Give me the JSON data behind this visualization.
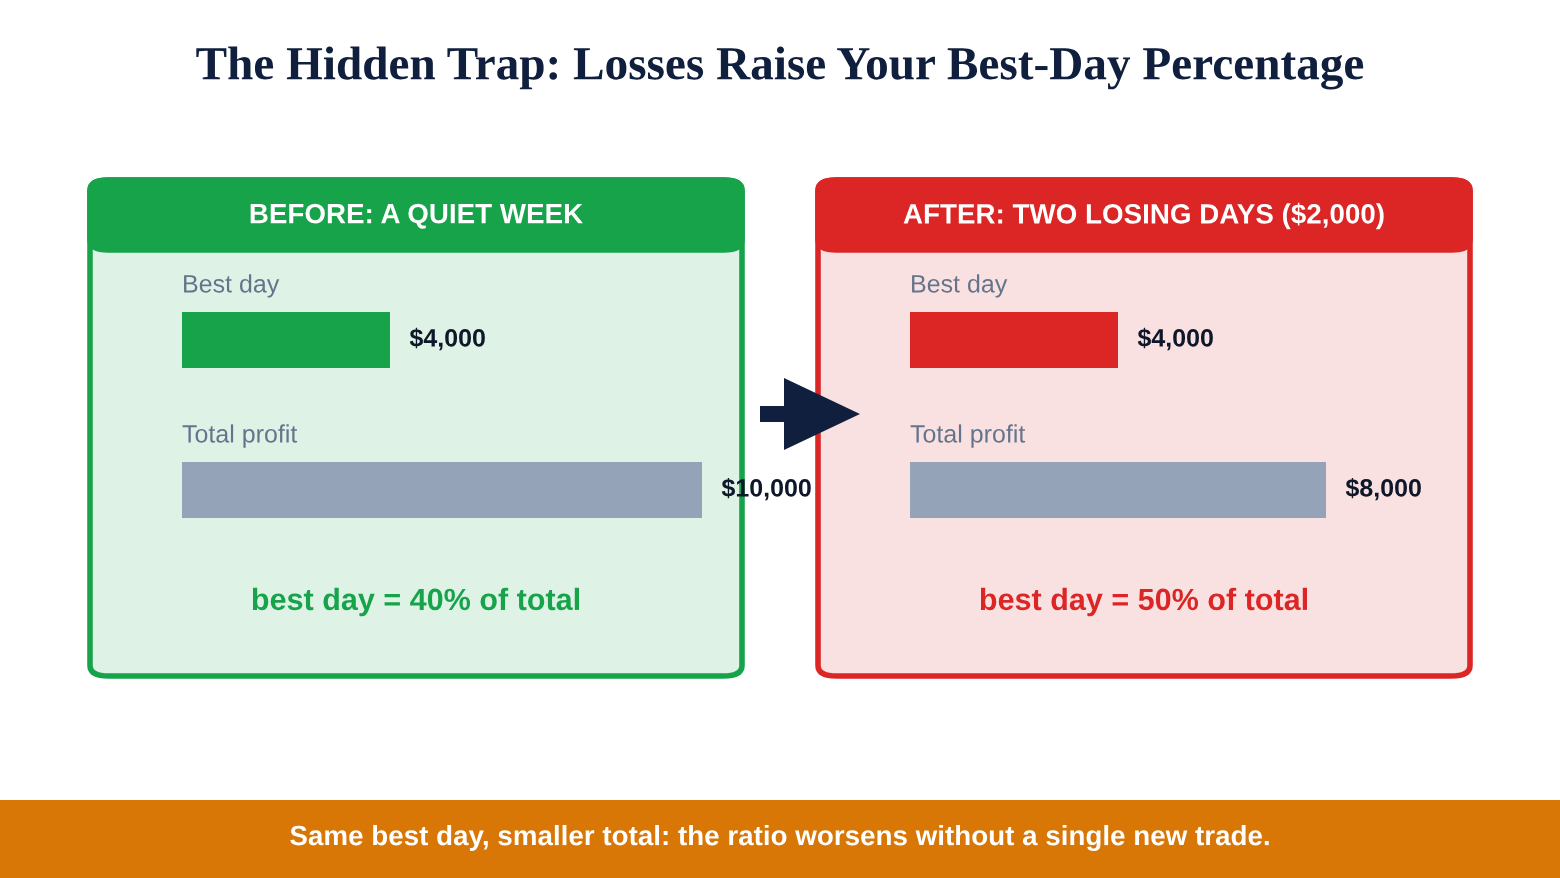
{
  "chart_data": [
    {
      "type": "bar",
      "orientation": "horizontal",
      "title": "BEFORE: A QUIET WEEK",
      "categories": [
        "Best day",
        "Total profit"
      ],
      "values": [
        4000,
        10000
      ],
      "value_labels": [
        "$4,000",
        "$10,000"
      ],
      "colors": [
        "#16a34a",
        "#94a3b8"
      ],
      "annotations": [
        "best day = 40% of total"
      ]
    },
    {
      "type": "bar",
      "orientation": "horizontal",
      "title": "AFTER: TWO LOSING DAYS ($2,000)",
      "categories": [
        "Best day",
        "Total profit"
      ],
      "values": [
        4000,
        8000
      ],
      "value_labels": [
        "$4,000",
        "$8,000"
      ],
      "colors": [
        "#dc2626",
        "#94a3b8"
      ],
      "annotations": [
        "best day = 50% of total"
      ]
    },
    {
      "type": "other",
      "title": "The Hidden Trap: Losses Raise Your Best-Day Percentage",
      "annotations": [
        "Same best day, smaller total: the ratio worsens without a single new trade."
      ]
    }
  ]
}
